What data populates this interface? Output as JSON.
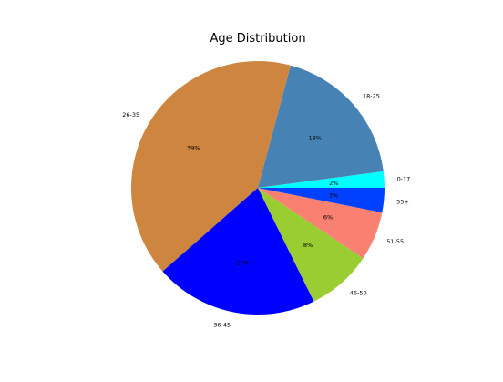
{
  "chart_data": {
    "type": "pie",
    "title": "Age Distribution",
    "categories": [
      "0-17",
      "18-25",
      "26-35",
      "36-45",
      "46-50",
      "51-55",
      "55+"
    ],
    "values": [
      2,
      18,
      39,
      20,
      8,
      6,
      3
    ],
    "percent_labels": [
      "2%",
      "18%",
      "39%",
      "20%",
      "8%",
      "6%",
      "3%"
    ],
    "colors": [
      "#00ffff",
      "#4682b4",
      "#cd853f",
      "#0000ff",
      "#9acd32",
      "#fa8072",
      "#0040ff"
    ],
    "start_angle_deg": 0,
    "direction": "counterclockwise",
    "legend": "none"
  }
}
